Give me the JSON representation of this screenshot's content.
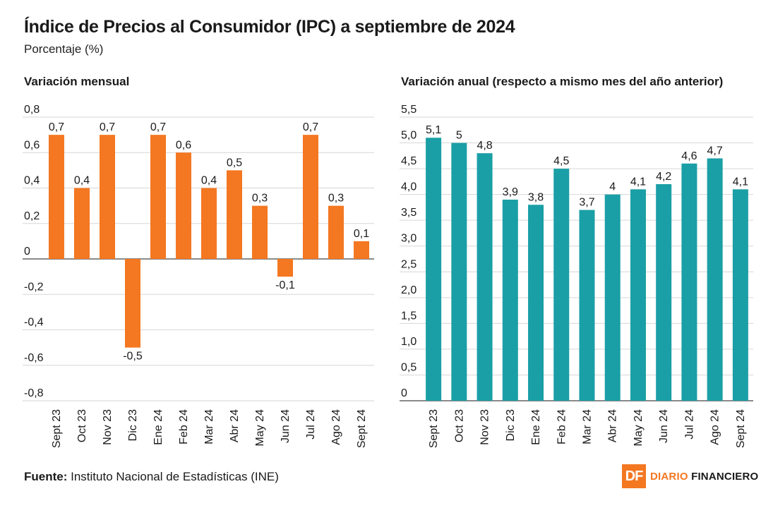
{
  "header": {
    "title": "Índice de Precios al Consumidor (IPC) a septiembre de 2024",
    "subtitle": "Porcentaje (%)"
  },
  "footer": {
    "source_label": "Fuente:",
    "source_text": "Instituto Nacional de Estadísticas (INE)"
  },
  "logo": {
    "mark": "DF",
    "name_part1": "DIARIO",
    "name_part2": "FINANCIERO"
  },
  "colors": {
    "monthly_bar": "#f47721",
    "annual_bar": "#1a9fa6",
    "grid": "#d6d6d6",
    "axis": "#444444"
  },
  "chart_data": [
    {
      "type": "bar",
      "title": "Variación mensual",
      "categories": [
        "Sept 23",
        "Oct 23",
        "Nov 23",
        "Dic 23",
        "Ene 24",
        "Feb 24",
        "Mar 24",
        "Abr 24",
        "May 24",
        "Jun 24",
        "Jul 24",
        "Ago 24",
        "Sept 24"
      ],
      "values": [
        0.7,
        0.4,
        0.7,
        -0.5,
        0.7,
        0.6,
        0.4,
        0.5,
        0.3,
        -0.1,
        0.7,
        0.3,
        0.1
      ],
      "value_labels": [
        "0,7",
        "0,4",
        "0,7",
        "-0,5",
        "0,7",
        "0,6",
        "0,4",
        "0,5",
        "0,3",
        "-0,1",
        "0,7",
        "0,3",
        "0,1"
      ],
      "yticks": [
        0.8,
        0.6,
        0.4,
        0.2,
        0,
        -0.2,
        -0.4,
        -0.6,
        -0.8
      ],
      "ytick_labels": [
        "0,8",
        "0,6",
        "0,4",
        "0,2",
        "0",
        "-0,2",
        "-0,4",
        "-0,6",
        "-0,8"
      ],
      "ylim": [
        -0.8,
        0.8
      ],
      "grid": true,
      "legend": "none"
    },
    {
      "type": "bar",
      "title": "Variación anual (respecto a mismo mes del año anterior)",
      "categories": [
        "Sept 23",
        "Oct 23",
        "Nov 23",
        "Dic 23",
        "Ene 24",
        "Feb 24",
        "Mar 24",
        "Abr 24",
        "May 24",
        "Jun 24",
        "Jul 24",
        "Ago 24",
        "Sept 24"
      ],
      "values": [
        5.1,
        5.0,
        4.8,
        3.9,
        3.8,
        4.5,
        3.7,
        4.0,
        4.1,
        4.2,
        4.6,
        4.7,
        4.1
      ],
      "value_labels": [
        "5,1",
        "5",
        "4,8",
        "3,9",
        "3,8",
        "4,5",
        "3,7",
        "4",
        "4,1",
        "4,2",
        "4,6",
        "4,7",
        "4,1"
      ],
      "yticks": [
        5.5,
        5.0,
        4.5,
        4.0,
        3.5,
        3.0,
        2.5,
        2.0,
        1.5,
        1.0,
        0.5,
        0
      ],
      "ytick_labels": [
        "5,5",
        "5,0",
        "4,5",
        "4,0",
        "3,5",
        "3,0",
        "2,5",
        "2,0",
        "1,5",
        "1,0",
        "0,5",
        "0"
      ],
      "ylim": [
        0,
        5.5
      ],
      "grid": true,
      "legend": "none"
    }
  ]
}
